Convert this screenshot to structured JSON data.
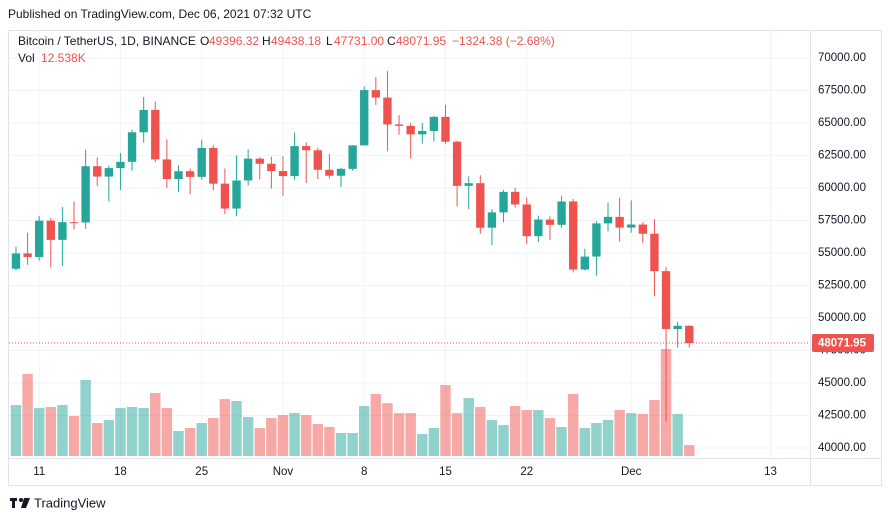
{
  "published": "Published on TradingView.com, Dec 06, 2021 07:32 UTC",
  "footer": "TradingView",
  "chart_data": {
    "type": "candlestick",
    "legend": {
      "symbol": "Bitcoin / TetherUS, 1D, BINANCE",
      "open_key": "O",
      "open": "49396.32",
      "high_key": "H",
      "high": "49438.18",
      "low_key": "L",
      "low": "47731.00",
      "close_key": "C",
      "close": "48071.95",
      "change": "−1324.38 (−2.68%)",
      "volume_key": "Vol",
      "volume": "12.538K"
    },
    "up_color": "#26a69a",
    "down_color": "#ef5350",
    "open": [
      53785,
      54963,
      54691,
      57484,
      56006,
      57367,
      57347,
      61672,
      60875,
      61528,
      62010,
      64280,
      66002,
      62193,
      60688,
      61286,
      60853,
      63078,
      60329,
      58413,
      60575,
      62253,
      61859,
      61300,
      60911,
      63219,
      62897,
      61396,
      60937,
      61470,
      63273,
      67525,
      66947,
      64882,
      64774,
      64122,
      64380,
      65466,
      63557,
      60161,
      60368,
      56942,
      58119,
      59697,
      58730,
      56289,
      57569,
      57165,
      58960,
      53727,
      54721,
      57274,
      57776,
      56950,
      57184,
      56480,
      53601,
      49152,
      49396.32
    ],
    "high": [
      55489,
      56561,
      57839,
      57680,
      58532,
      58971,
      62933,
      62350,
      61720,
      62695,
      64486,
      67000,
      66639,
      63732,
      61747,
      61490,
      63710,
      63293,
      61496,
      62499,
      62980,
      62359,
      62405,
      62437,
      64270,
      63500,
      63086,
      62595,
      61560,
      63286,
      67789,
      68530,
      69000,
      65600,
      65000,
      65000,
      65550,
      66401,
      63617,
      60900,
      60976,
      58366,
      59845,
      60030,
      59266,
      57875,
      57803,
      59398,
      59150,
      55329,
      57445,
      58865,
      59249,
      59041,
      57375,
      57600,
      53904,
      49699,
      49438.18
    ],
    "low": [
      53661,
      54095,
      54415,
      53879,
      54000,
      56818,
      56850,
      60150,
      58963,
      59844,
      61322,
      63482,
      62000,
      60000,
      59668,
      59510,
      60650,
      59820,
      58000,
      57820,
      60174,
      60673,
      59945,
      59405,
      60624,
      60382,
      60677,
      60721,
      60050,
      61322,
      63273,
      66382,
      62822,
      64100,
      62278,
      63400,
      63576,
      63400,
      58574,
      58373,
      56474,
      55600,
      57353,
      58486,
      55679,
      55837,
      55988,
      56938,
      53500,
      53669,
      53256,
      56666,
      55875,
      56553,
      55777,
      51680,
      42000,
      47727,
      47731
    ],
    "close": [
      54963,
      54691,
      57484,
      56006,
      57367,
      57347,
      61672,
      60875,
      61528,
      62010,
      64280,
      66002,
      62193,
      60688,
      61286,
      60853,
      63078,
      60329,
      58413,
      60575,
      62253,
      61859,
      61300,
      60911,
      63219,
      62897,
      61396,
      60937,
      61470,
      63273,
      67525,
      66947,
      64882,
      64774,
      64122,
      64380,
      65466,
      63557,
      60161,
      60368,
      56942,
      58119,
      59697,
      58730,
      56289,
      57569,
      57165,
      58960,
      53727,
      54721,
      57274,
      57776,
      56950,
      57184,
      56480,
      53601,
      49152,
      49396.32,
      48071.95
    ],
    "volume": [
      58100,
      93500,
      54700,
      55900,
      58100,
      45600,
      86600,
      37600,
      41000,
      54700,
      55900,
      54700,
      71800,
      54700,
      28500,
      31900,
      37600,
      43300,
      64900,
      62700,
      44500,
      31900,
      43300,
      46700,
      49000,
      46700,
      36500,
      33100,
      26200,
      26200,
      57000,
      70700,
      60300,
      48900,
      48900,
      25100,
      31900,
      80900,
      48900,
      66100,
      55900,
      41000,
      35300,
      57000,
      52400,
      52400,
      43300,
      33100,
      70700,
      31900,
      37600,
      41000,
      52400,
      48900,
      47900,
      63800,
      122000,
      47900,
      12538
    ],
    "xlim": [
      -0.6,
      68.4
    ],
    "xticks": [
      {
        "value": 2,
        "label": "11"
      },
      {
        "value": 9,
        "label": "18"
      },
      {
        "value": 16,
        "label": "25"
      },
      {
        "value": 23,
        "label": "Nov"
      },
      {
        "value": 30,
        "label": "8"
      },
      {
        "value": 37,
        "label": "15"
      },
      {
        "value": 44,
        "label": "22"
      },
      {
        "value": 53,
        "label": "Dec"
      },
      {
        "value": 65,
        "label": "13"
      }
    ],
    "ylim": [
      39230,
      72070
    ],
    "yticks": [
      {
        "value": 40000,
        "label": "40000.00"
      },
      {
        "value": 42500,
        "label": "42500.00"
      },
      {
        "value": 45000,
        "label": "45000.00"
      },
      {
        "value": 47500,
        "label": "47500.00"
      },
      {
        "value": 50000,
        "label": "50000.00"
      },
      {
        "value": 52500,
        "label": "52500.00"
      },
      {
        "value": 55000,
        "label": "55000.00"
      },
      {
        "value": 57500,
        "label": "57500.00"
      },
      {
        "value": 60000,
        "label": "60000.00"
      },
      {
        "value": 62500,
        "label": "62500.00"
      },
      {
        "value": 65000,
        "label": "65000.00"
      },
      {
        "value": 67500,
        "label": "67500.00"
      },
      {
        "value": 70000,
        "label": "70000.00"
      }
    ],
    "grid": true
  }
}
